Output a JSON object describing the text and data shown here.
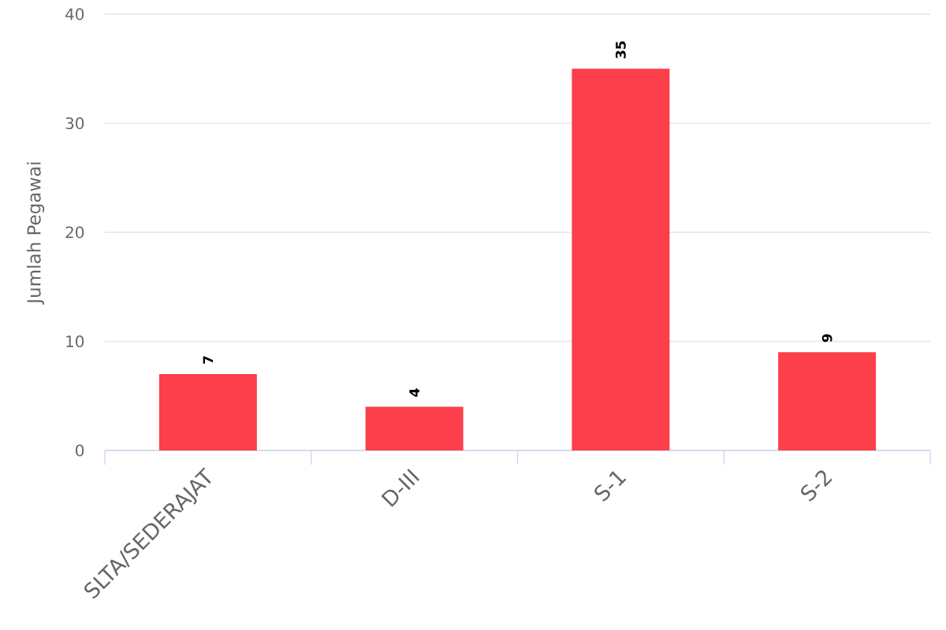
{
  "chart_data": {
    "type": "bar",
    "ylabel": "Jumlah Pegawai",
    "categories": [
      "SLTA/SEDERAJAT",
      "D-III",
      "S-1",
      "S-2"
    ],
    "values": [
      7,
      4,
      35,
      9
    ],
    "color": "#fc3f4b",
    "ylim": [
      0,
      40
    ],
    "yticks": [
      0,
      10,
      20,
      30,
      40
    ],
    "grid": "y",
    "data_labels": true
  }
}
